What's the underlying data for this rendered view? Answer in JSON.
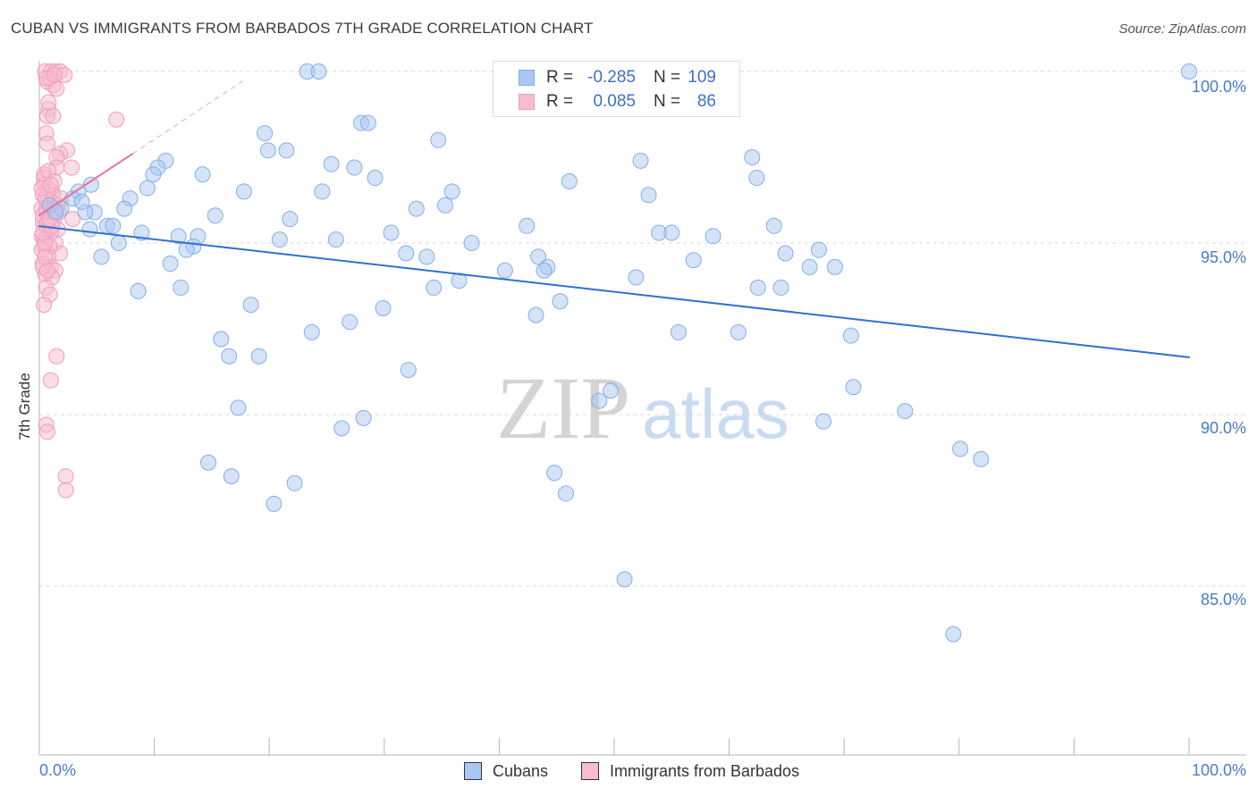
{
  "source": "Source: ZipAtlas.com",
  "watermark": {
    "zip": "ZIP",
    "atlas": "atlas"
  },
  "stat_labels": {
    "r": "R =",
    "n": "N ="
  },
  "colors": {
    "grid": "#d9d9d9",
    "axis": "#b5b5b5",
    "value_text": "#3b70cc",
    "tick_text": "#4a7ac9",
    "watermark_zip": "#d4d4d4",
    "watermark_atlas": "#c8dbf3"
  },
  "chart_data": {
    "type": "scatter",
    "title": "CUBAN VS IMMIGRANTS FROM BARBADOS 7TH GRADE CORRELATION CHART",
    "ylabel": "7th Grade",
    "xlim": [
      0,
      100
    ],
    "ylim": [
      80.1,
      100.3
    ],
    "x_ticks": [
      0,
      10,
      20,
      30,
      40,
      50,
      60,
      70,
      80,
      90,
      100
    ],
    "x_tick_labels": [
      "0.0%",
      "100.0%"
    ],
    "y_ticks": [
      100,
      95,
      90,
      85
    ],
    "y_tick_labels": [
      "100.0%",
      "95.0%",
      "90.0%",
      "85.0%"
    ],
    "series": [
      {
        "name": "Cubans",
        "r": "-0.285",
        "n": "109",
        "marker_fill": "#a9c7f2",
        "marker_stroke": "#86aee6",
        "line_color": "#2f6fd4",
        "trend": {
          "solid": [
            [
              0,
              95.49
            ],
            [
              100,
              91.67
            ]
          ]
        },
        "points": [
          [
            100.0,
            100.0
          ],
          [
            23.3,
            100.0
          ],
          [
            24.3,
            100.0
          ],
          [
            28.0,
            98.5
          ],
          [
            28.6,
            98.5
          ],
          [
            19.6,
            98.2
          ],
          [
            34.7,
            98.0
          ],
          [
            19.9,
            97.7
          ],
          [
            21.5,
            97.7
          ],
          [
            62.0,
            97.5
          ],
          [
            52.3,
            97.4
          ],
          [
            11.0,
            97.4
          ],
          [
            25.4,
            97.3
          ],
          [
            27.4,
            97.2
          ],
          [
            10.3,
            97.2
          ],
          [
            9.9,
            97.0
          ],
          [
            14.2,
            97.0
          ],
          [
            62.4,
            96.9
          ],
          [
            29.2,
            96.9
          ],
          [
            46.1,
            96.8
          ],
          [
            4.5,
            96.7
          ],
          [
            3.4,
            96.5
          ],
          [
            9.4,
            96.6
          ],
          [
            17.8,
            96.5
          ],
          [
            24.6,
            96.5
          ],
          [
            35.9,
            96.5
          ],
          [
            53.0,
            96.4
          ],
          [
            7.9,
            96.3
          ],
          [
            2.9,
            96.3
          ],
          [
            32.8,
            96.0
          ],
          [
            35.3,
            96.1
          ],
          [
            7.4,
            96.0
          ],
          [
            1.9,
            96.0
          ],
          [
            4.8,
            95.9
          ],
          [
            4.0,
            95.9
          ],
          [
            15.3,
            95.8
          ],
          [
            21.8,
            95.7
          ],
          [
            42.4,
            95.5
          ],
          [
            63.9,
            95.5
          ],
          [
            5.9,
            95.5
          ],
          [
            6.4,
            95.5
          ],
          [
            4.4,
            95.4
          ],
          [
            8.9,
            95.3
          ],
          [
            30.6,
            95.3
          ],
          [
            53.9,
            95.3
          ],
          [
            55.0,
            95.3
          ],
          [
            58.6,
            95.2
          ],
          [
            12.1,
            95.2
          ],
          [
            13.8,
            95.2
          ],
          [
            20.9,
            95.1
          ],
          [
            25.8,
            95.1
          ],
          [
            6.9,
            95.0
          ],
          [
            37.6,
            95.0
          ],
          [
            13.4,
            94.9
          ],
          [
            67.8,
            94.8
          ],
          [
            12.8,
            94.8
          ],
          [
            64.9,
            94.7
          ],
          [
            31.9,
            94.7
          ],
          [
            33.7,
            94.6
          ],
          [
            5.4,
            94.6
          ],
          [
            43.4,
            94.6
          ],
          [
            56.9,
            94.5
          ],
          [
            11.4,
            94.4
          ],
          [
            69.2,
            94.3
          ],
          [
            67.0,
            94.3
          ],
          [
            44.2,
            94.3
          ],
          [
            43.9,
            94.2
          ],
          [
            40.5,
            94.2
          ],
          [
            51.9,
            94.0
          ],
          [
            36.5,
            93.9
          ],
          [
            34.3,
            93.7
          ],
          [
            62.5,
            93.7
          ],
          [
            64.5,
            93.7
          ],
          [
            12.3,
            93.7
          ],
          [
            8.6,
            93.6
          ],
          [
            45.3,
            93.3
          ],
          [
            18.4,
            93.2
          ],
          [
            29.9,
            93.1
          ],
          [
            43.2,
            92.9
          ],
          [
            27.0,
            92.7
          ],
          [
            55.6,
            92.4
          ],
          [
            60.8,
            92.4
          ],
          [
            23.7,
            92.4
          ],
          [
            70.6,
            92.3
          ],
          [
            15.8,
            92.2
          ],
          [
            19.1,
            91.7
          ],
          [
            16.5,
            91.7
          ],
          [
            32.1,
            91.3
          ],
          [
            49.7,
            90.7
          ],
          [
            70.8,
            90.8
          ],
          [
            48.7,
            90.4
          ],
          [
            17.3,
            90.2
          ],
          [
            75.3,
            90.1
          ],
          [
            28.2,
            89.9
          ],
          [
            68.2,
            89.8
          ],
          [
            26.3,
            89.6
          ],
          [
            80.1,
            89.0
          ],
          [
            81.9,
            88.7
          ],
          [
            14.7,
            88.6
          ],
          [
            44.8,
            88.3
          ],
          [
            16.7,
            88.2
          ],
          [
            22.2,
            88.0
          ],
          [
            45.8,
            87.7
          ],
          [
            20.4,
            87.4
          ],
          [
            50.9,
            85.2
          ],
          [
            79.5,
            83.6
          ],
          [
            0.9,
            96.1
          ],
          [
            1.4,
            95.9
          ],
          [
            3.7,
            96.2
          ]
        ]
      },
      {
        "name": "Immigrants from Barbados",
        "r": "0.085",
        "n": "86",
        "marker_fill": "#f7bcd0",
        "marker_stroke": "#ee9dbb",
        "line_color": "#e8729c",
        "trend": {
          "solid": [
            [
              0,
              95.81
            ],
            [
              8.1,
              97.6
            ]
          ],
          "dashed": [
            [
              8.1,
              97.6
            ],
            [
              17.7,
              99.72
            ]
          ]
        },
        "points": [
          [
            0.5,
            100.0
          ],
          [
            1.0,
            100.0
          ],
          [
            1.4,
            100.0
          ],
          [
            1.8,
            100.0
          ],
          [
            2.2,
            99.9
          ],
          [
            0.7,
            99.7
          ],
          [
            1.2,
            99.6
          ],
          [
            0.9,
            99.8
          ],
          [
            1.5,
            99.5
          ],
          [
            0.6,
            99.8
          ],
          [
            6.7,
            98.6
          ],
          [
            0.8,
            98.9
          ],
          [
            0.7,
            98.7
          ],
          [
            1.2,
            98.7
          ],
          [
            0.6,
            98.2
          ],
          [
            0.7,
            97.9
          ],
          [
            2.4,
            97.7
          ],
          [
            1.8,
            97.6
          ],
          [
            1.5,
            97.5
          ],
          [
            2.8,
            97.2
          ],
          [
            1.5,
            97.2
          ],
          [
            0.4,
            97.0
          ],
          [
            0.4,
            96.7
          ],
          [
            0.8,
            96.6
          ],
          [
            1.1,
            96.5
          ],
          [
            0.3,
            96.4
          ],
          [
            0.7,
            96.2
          ],
          [
            1.1,
            96.2
          ],
          [
            0.2,
            96.0
          ],
          [
            0.6,
            95.9
          ],
          [
            1.0,
            95.8
          ],
          [
            2.9,
            95.7
          ],
          [
            1.3,
            95.7
          ],
          [
            0.3,
            95.6
          ],
          [
            0.8,
            95.4
          ],
          [
            1.6,
            95.4
          ],
          [
            0.2,
            95.2
          ],
          [
            0.6,
            95.2
          ],
          [
            1.4,
            95.0
          ],
          [
            0.4,
            94.9
          ],
          [
            1.8,
            94.7
          ],
          [
            0.8,
            94.6
          ],
          [
            0.3,
            94.4
          ],
          [
            1.0,
            94.3
          ],
          [
            1.4,
            94.2
          ],
          [
            0.5,
            94.1
          ],
          [
            1.1,
            94.0
          ],
          [
            0.6,
            93.7
          ],
          [
            0.9,
            93.5
          ],
          [
            0.4,
            93.2
          ],
          [
            1.5,
            91.7
          ],
          [
            1.0,
            91.0
          ],
          [
            0.6,
            89.7
          ],
          [
            0.7,
            89.5
          ],
          [
            2.3,
            88.2
          ],
          [
            2.3,
            87.8
          ],
          [
            0.5,
            96.3
          ],
          [
            0.9,
            96.1
          ],
          [
            1.2,
            96.0
          ],
          [
            0.3,
            95.8
          ],
          [
            0.7,
            95.6
          ],
          [
            0.5,
            95.5
          ],
          [
            1.0,
            95.3
          ],
          [
            0.4,
            95.1
          ],
          [
            0.9,
            94.9
          ],
          [
            0.2,
            94.8
          ],
          [
            1.2,
            96.4
          ],
          [
            0.4,
            96.9
          ],
          [
            0.8,
            97.1
          ],
          [
            1.3,
            96.8
          ],
          [
            0.5,
            95.0
          ],
          [
            1.6,
            96.1
          ],
          [
            0.3,
            94.3
          ],
          [
            0.7,
            94.2
          ],
          [
            1.9,
            96.3
          ],
          [
            0.2,
            96.6
          ],
          [
            1.1,
            95.5
          ],
          [
            0.6,
            96.0
          ],
          [
            0.9,
            95.7
          ],
          [
            1.4,
            96.0
          ],
          [
            0.5,
            94.6
          ],
          [
            1.7,
            95.9
          ],
          [
            0.3,
            95.3
          ],
          [
            1.0,
            96.7
          ],
          [
            0.8,
            99.1
          ],
          [
            1.3,
            99.9
          ]
        ]
      }
    ]
  }
}
